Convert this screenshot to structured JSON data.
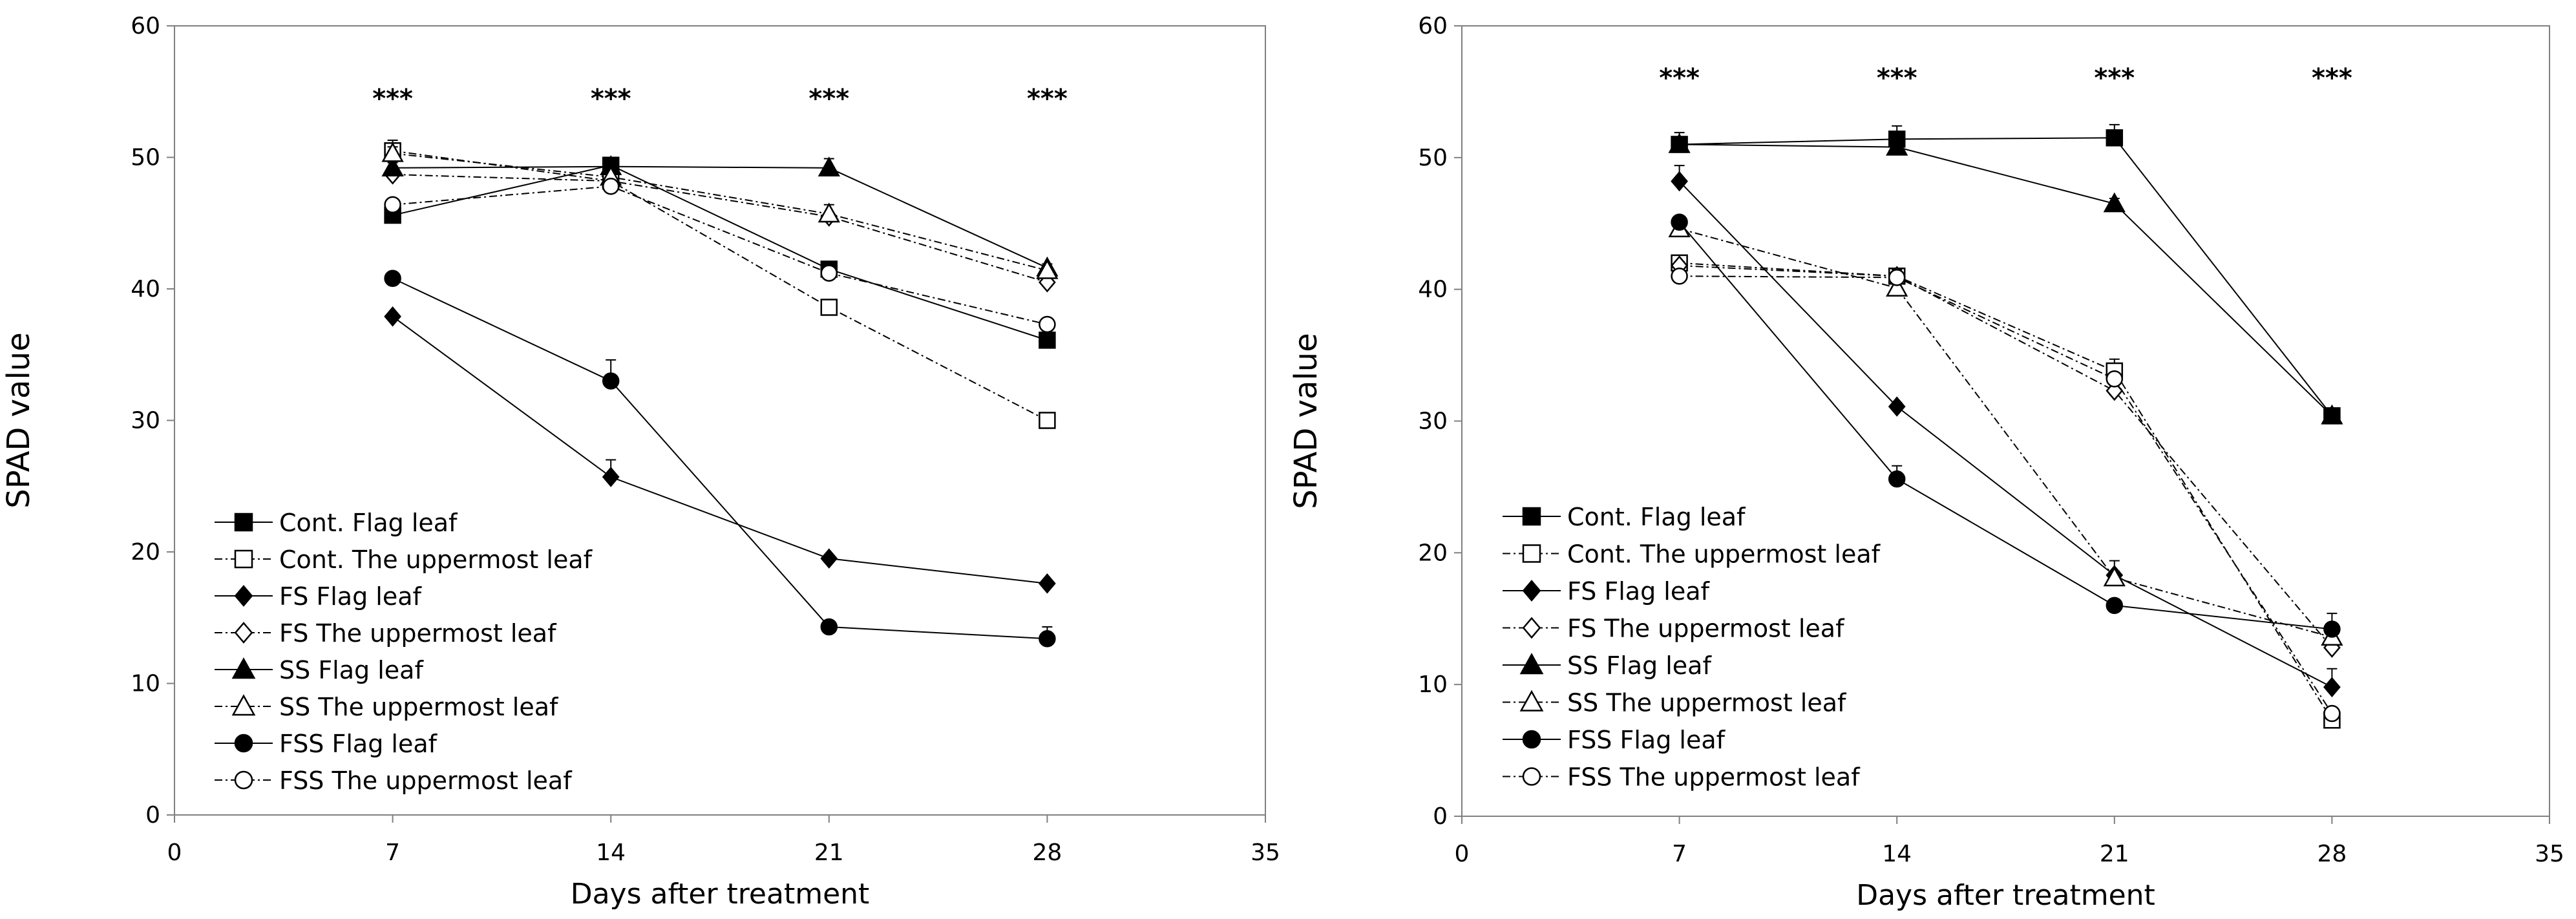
{
  "chart_data": [
    {
      "type": "line",
      "panel": "left",
      "xlabel": "Days after treatment",
      "ylabel": "SPAD value",
      "xlim": [
        0,
        35
      ],
      "ylim": [
        0,
        60
      ],
      "xticks": [
        0,
        7,
        14,
        21,
        28,
        35
      ],
      "yticks": [
        0,
        10,
        20,
        30,
        40,
        50,
        60
      ],
      "x": [
        7,
        14,
        21,
        28
      ],
      "significance": [
        "***",
        "***",
        "***",
        "***"
      ],
      "series": [
        {
          "name": "Cont. Flag leaf",
          "marker": "square",
          "filled": true,
          "dashed": false,
          "values": [
            45.6,
            49.4,
            41.5,
            36.1
          ],
          "errors": [
            0.4,
            0.4,
            0.4,
            0.4
          ]
        },
        {
          "name": "Cont. The uppermost leaf",
          "marker": "square",
          "filled": false,
          "dashed": true,
          "values": [
            50.5,
            48.2,
            38.6,
            30.0
          ],
          "errors": [
            0.8,
            0.3,
            0.3,
            0.3
          ]
        },
        {
          "name": "FS Flag leaf",
          "marker": "diamond",
          "filled": true,
          "dashed": false,
          "values": [
            37.9,
            25.7,
            19.5,
            17.6
          ],
          "errors": [
            0.2,
            1.3,
            0.2,
            0.2
          ]
        },
        {
          "name": "FS The uppermost leaf",
          "marker": "diamond",
          "filled": false,
          "dashed": true,
          "values": [
            48.7,
            48.2,
            45.5,
            40.5
          ],
          "errors": [
            0.3,
            0.3,
            0.3,
            0.3
          ]
        },
        {
          "name": "SS Flag leaf",
          "marker": "triangle",
          "filled": true,
          "dashed": false,
          "values": [
            49.2,
            49.3,
            49.2,
            41.6
          ],
          "errors": [
            0.4,
            0.3,
            0.7,
            0.3
          ]
        },
        {
          "name": "SS The uppermost leaf",
          "marker": "triangle",
          "filled": false,
          "dashed": true,
          "values": [
            50.3,
            48.5,
            45.7,
            41.4
          ],
          "errors": [
            0.5,
            0.3,
            0.7,
            0.3
          ]
        },
        {
          "name": "FSS Flag leaf",
          "marker": "circle",
          "filled": true,
          "dashed": false,
          "values": [
            40.8,
            33.0,
            14.3,
            13.4
          ],
          "errors": [
            0.4,
            1.6,
            0.2,
            0.9
          ]
        },
        {
          "name": "FSS The uppermost leaf",
          "marker": "circle",
          "filled": false,
          "dashed": true,
          "values": [
            46.4,
            47.8,
            41.2,
            37.3
          ],
          "errors": [
            0.3,
            0.3,
            0.3,
            0.3
          ]
        }
      ]
    },
    {
      "type": "line",
      "panel": "right",
      "xlabel": "Days after treatment",
      "ylabel": "SPAD value",
      "xlim": [
        0,
        35
      ],
      "ylim": [
        0,
        60
      ],
      "xticks": [
        0,
        7,
        14,
        21,
        28,
        35
      ],
      "yticks": [
        0,
        10,
        20,
        30,
        40,
        50,
        60
      ],
      "x": [
        7,
        14,
        21,
        28
      ],
      "significance": [
        "***",
        "***",
        "***",
        "***"
      ],
      "series": [
        {
          "name": "Cont. Flag leaf",
          "marker": "square",
          "filled": true,
          "dashed": false,
          "values": [
            51.0,
            51.4,
            51.5,
            30.4
          ],
          "errors": [
            0.9,
            1.0,
            1.0,
            0.3
          ]
        },
        {
          "name": "Cont. The uppermost leaf",
          "marker": "square",
          "filled": false,
          "dashed": true,
          "values": [
            42.0,
            41.0,
            33.8,
            7.3
          ],
          "errors": [
            0.3,
            0.3,
            0.9,
            0.3
          ]
        },
        {
          "name": "FS Flag leaf",
          "marker": "diamond",
          "filled": true,
          "dashed": false,
          "values": [
            48.2,
            31.1,
            18.3,
            9.8
          ],
          "errors": [
            1.2,
            0.3,
            0.3,
            1.4
          ]
        },
        {
          "name": "FS The uppermost leaf",
          "marker": "diamond",
          "filled": false,
          "dashed": true,
          "values": [
            41.8,
            41.0,
            32.3,
            12.8
          ],
          "errors": [
            0.3,
            0.3,
            0.3,
            0.3
          ]
        },
        {
          "name": "SS Flag leaf",
          "marker": "triangle",
          "filled": true,
          "dashed": false,
          "values": [
            51.0,
            50.8,
            46.5,
            30.4
          ],
          "errors": [
            0.4,
            0.4,
            0.4,
            0.3
          ]
        },
        {
          "name": "SS The uppermost leaf",
          "marker": "triangle",
          "filled": false,
          "dashed": true,
          "values": [
            44.6,
            40.1,
            18.1,
            13.6
          ],
          "errors": [
            0.3,
            0.3,
            1.3,
            0.3
          ]
        },
        {
          "name": "FSS Flag leaf",
          "marker": "circle",
          "filled": true,
          "dashed": false,
          "values": [
            45.1,
            25.6,
            16.0,
            14.2
          ],
          "errors": [
            0.4,
            1.0,
            0.3,
            1.2
          ]
        },
        {
          "name": "FSS The uppermost leaf",
          "marker": "circle",
          "filled": false,
          "dashed": true,
          "values": [
            41.0,
            40.9,
            33.2,
            7.8
          ],
          "errors": [
            0.3,
            0.6,
            0.4,
            0.3
          ]
        }
      ]
    }
  ]
}
